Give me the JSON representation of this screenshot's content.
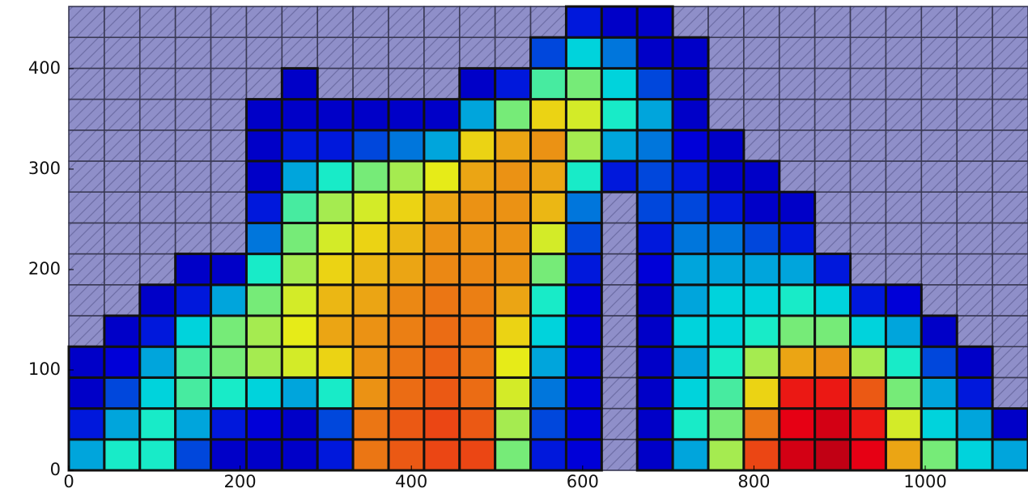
{
  "chart_data": {
    "type": "heatmap",
    "xlim": [
      0,
      1120
    ],
    "ylim": [
      0,
      462
    ],
    "xticks": [
      0,
      200,
      400,
      600,
      800,
      1000
    ],
    "yticks": [
      0,
      100,
      200,
      300,
      400
    ],
    "z": [
      [
        0.3,
        0.15,
        0.1,
        0.1,
        null,
        null,
        null,
        null,
        null,
        null,
        null,
        null,
        null,
        null,
        null
      ],
      [
        0.4,
        0.3,
        0.2,
        0.12,
        0.1,
        null,
        null,
        null,
        null,
        null,
        null,
        null,
        null,
        null,
        null
      ],
      [
        0.4,
        0.4,
        0.35,
        0.3,
        0.15,
        0.1,
        null,
        null,
        null,
        null,
        null,
        null,
        null,
        null,
        null
      ],
      [
        0.2,
        0.3,
        0.45,
        0.45,
        0.35,
        0.15,
        0.1,
        null,
        null,
        null,
        null,
        null,
        null,
        null,
        null
      ],
      [
        0.1,
        0.15,
        0.4,
        0.5,
        0.5,
        0.3,
        0.1,
        null,
        null,
        null,
        null,
        null,
        null,
        null,
        null
      ],
      [
        0.1,
        0.12,
        0.35,
        0.55,
        0.55,
        0.5,
        0.4,
        0.25,
        0.15,
        0.1,
        0.1,
        0.1,
        null,
        null,
        null
      ],
      [
        0.1,
        0.1,
        0.3,
        0.6,
        0.62,
        0.6,
        0.55,
        0.5,
        0.45,
        0.3,
        0.15,
        0.1,
        0.1,
        null,
        null
      ],
      [
        0.15,
        0.2,
        0.4,
        0.65,
        0.7,
        0.68,
        0.65,
        0.6,
        0.55,
        0.4,
        0.15,
        0.1,
        null,
        null,
        null
      ],
      [
        0.75,
        0.75,
        0.72,
        0.72,
        0.72,
        0.7,
        0.68,
        0.65,
        0.6,
        0.5,
        0.2,
        0.1,
        null,
        null,
        null
      ],
      [
        0.78,
        0.78,
        0.76,
        0.75,
        0.74,
        0.73,
        0.7,
        0.68,
        0.65,
        0.55,
        0.25,
        0.1,
        null,
        null,
        null
      ],
      [
        0.8,
        0.8,
        0.78,
        0.77,
        0.76,
        0.75,
        0.73,
        0.72,
        0.7,
        0.62,
        0.3,
        0.1,
        null,
        null,
        null
      ],
      [
        0.8,
        0.78,
        0.76,
        0.75,
        0.75,
        0.74,
        0.73,
        0.72,
        0.72,
        0.7,
        0.65,
        0.3,
        0.1,
        null,
        null
      ],
      [
        0.5,
        0.55,
        0.6,
        0.62,
        0.65,
        0.7,
        0.72,
        0.72,
        0.72,
        0.72,
        0.7,
        0.5,
        0.15,
        null,
        null
      ],
      [
        0.15,
        0.2,
        0.25,
        0.3,
        0.35,
        0.4,
        0.5,
        0.6,
        0.68,
        0.7,
        0.72,
        0.65,
        0.45,
        0.2,
        null
      ],
      [
        0.12,
        0.12,
        0.12,
        0.12,
        0.12,
        0.12,
        0.15,
        0.2,
        0.25,
        0.4,
        0.55,
        0.6,
        0.5,
        0.35,
        0.15
      ],
      [
        null,
        null,
        null,
        null,
        null,
        null,
        null,
        null,
        null,
        0.15,
        0.3,
        0.4,
        0.35,
        0.25,
        0.1
      ],
      [
        0.1,
        0.1,
        0.1,
        0.1,
        0.1,
        0.1,
        0.12,
        0.15,
        0.2,
        0.2,
        0.25,
        0.3,
        0.2,
        0.1,
        0.1
      ],
      [
        0.3,
        0.4,
        0.35,
        0.3,
        0.35,
        0.3,
        0.3,
        0.25,
        0.2,
        0.15,
        0.12,
        0.1,
        0.1,
        0.1,
        null
      ],
      [
        0.55,
        0.5,
        0.45,
        0.4,
        0.35,
        0.35,
        0.3,
        0.25,
        0.15,
        0.1,
        0.1,
        null,
        null,
        null,
        null
      ],
      [
        0.8,
        0.75,
        0.65,
        0.55,
        0.4,
        0.35,
        0.3,
        0.2,
        0.1,
        0.1,
        null,
        null,
        null,
        null,
        null
      ],
      [
        0.9,
        0.88,
        0.85,
        0.7,
        0.5,
        0.4,
        0.3,
        0.15,
        0.1,
        null,
        null,
        null,
        null,
        null,
        null
      ],
      [
        0.92,
        0.9,
        0.85,
        0.72,
        0.5,
        0.35,
        0.15,
        null,
        null,
        null,
        null,
        null,
        null,
        null,
        null
      ],
      [
        0.88,
        0.85,
        0.78,
        0.55,
        0.35,
        0.15,
        null,
        null,
        null,
        null,
        null,
        null,
        null,
        null,
        null
      ],
      [
        0.7,
        0.6,
        0.5,
        0.4,
        0.3,
        0.12,
        null,
        null,
        null,
        null,
        null,
        null,
        null,
        null,
        null
      ],
      [
        0.5,
        0.35,
        0.3,
        0.2,
        0.1,
        null,
        null,
        null,
        null,
        null,
        null,
        null,
        null,
        null,
        null
      ],
      [
        0.35,
        0.3,
        0.15,
        0.1,
        null,
        null,
        null,
        null,
        null,
        null,
        null,
        null,
        null,
        null,
        null
      ],
      [
        0.3,
        0.1,
        null,
        null,
        null,
        null,
        null,
        null,
        null,
        null,
        null,
        null,
        null,
        null,
        null
      ]
    ]
  }
}
